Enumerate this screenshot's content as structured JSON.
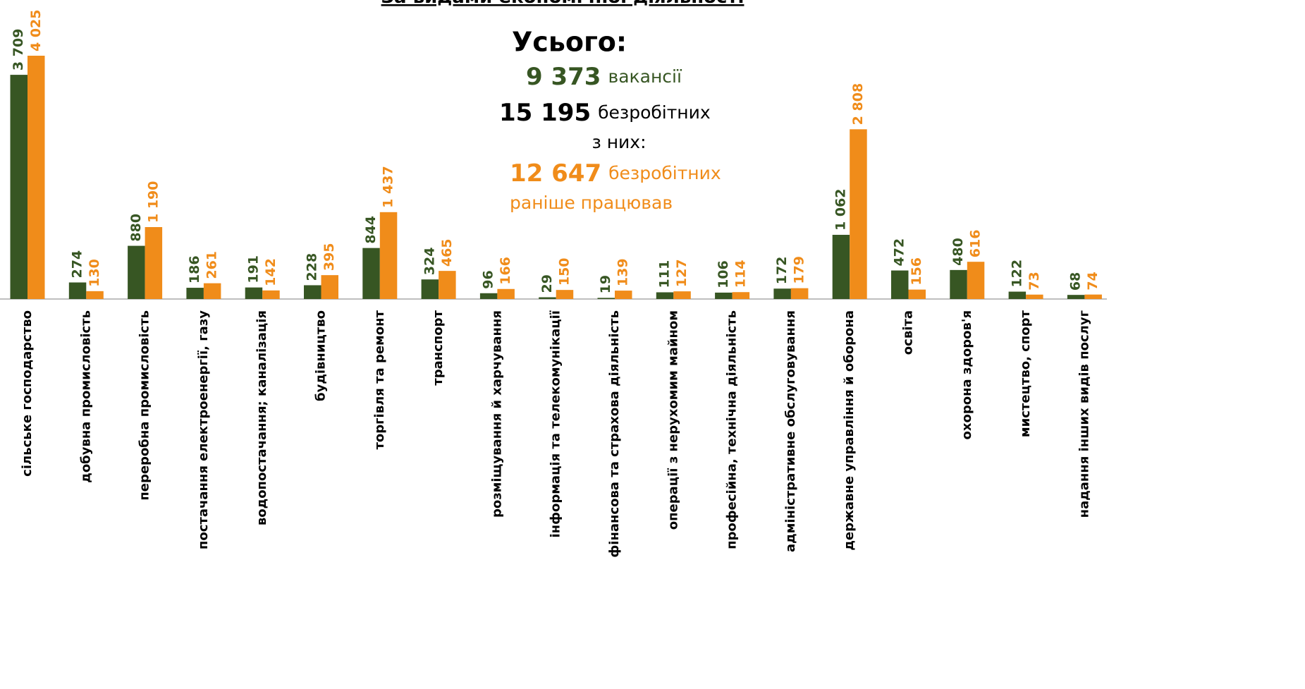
{
  "chart_data": {
    "type": "bar",
    "title": "За видами економічної діяльності",
    "categories": [
      "сільське господарство",
      "добувна промисловість",
      "переробна промисловість",
      "постачання електроенергії, газу",
      "водопостачання; каналізація",
      "будівництво",
      "торгівля та ремонт",
      "транспорт",
      "розміщування й харчування",
      "інформація та телекомунікації",
      "фінансова та страхова діяльність",
      "операції з нерухомим майном",
      "професійна, технічна діяльність",
      "адміністративне обслуговування",
      "державне управління й оборона",
      "освіта",
      "охорона здоров'я",
      "мистецтво, спорт",
      "надання інших видів послуг"
    ],
    "series": [
      {
        "color": "#375623",
        "values": [
          3709,
          274,
          880,
          186,
          191,
          228,
          844,
          324,
          96,
          29,
          19,
          111,
          106,
          172,
          1062,
          472,
          480,
          122,
          68
        ],
        "value_labels": [
          "3 709",
          "274",
          "880",
          "186",
          "191",
          "228",
          "844",
          "324",
          "96",
          "29",
          "19",
          "111",
          "106",
          "172",
          "1 062",
          "472",
          "480",
          "122",
          "68"
        ]
      },
      {
        "color": "#f08c1a",
        "values": [
          4025,
          130,
          1190,
          261,
          142,
          395,
          1437,
          465,
          166,
          150,
          139,
          127,
          114,
          179,
          2808,
          156,
          616,
          73,
          74
        ],
        "value_labels": [
          "4 025",
          "130",
          "1 190",
          "261",
          "142",
          "395",
          "1 437",
          "465",
          "166",
          "150",
          "139",
          "127",
          "114",
          "179",
          "2 808",
          "156",
          "616",
          "73",
          "74"
        ]
      }
    ],
    "annotations": {
      "heading": "Усього:",
      "vacancies": {
        "number": "9 373",
        "text": "вакансії"
      },
      "unemployed": {
        "number": "15 195",
        "text": "безробітних"
      },
      "of_them": "з них:",
      "worked": {
        "number": "12 647",
        "text": "безробітних"
      },
      "worked_note": "раніше працював"
    }
  }
}
